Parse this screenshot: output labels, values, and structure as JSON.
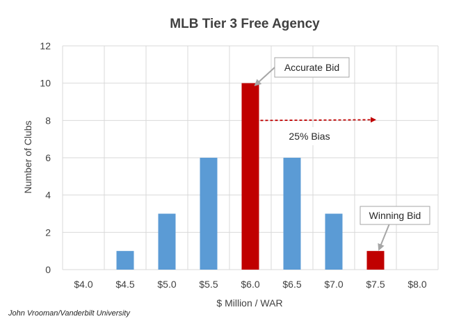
{
  "chart_data": {
    "type": "bar",
    "title": "MLB Tier 3 Free Agency",
    "xlabel": "$ Million / WAR",
    "ylabel": "Number of Clubs",
    "categories": [
      "$4.0",
      "$4.5",
      "$5.0",
      "$5.5",
      "$6.0",
      "$6.5",
      "$7.0",
      "$7.5",
      "$8.0"
    ],
    "values": [
      0,
      1,
      3,
      6,
      10,
      6,
      3,
      1,
      0
    ],
    "highlight_categories": [
      "$6.0",
      "$7.5"
    ],
    "ylim": [
      0,
      12
    ],
    "yticks": [
      0,
      2,
      4,
      6,
      8,
      10,
      12
    ],
    "grid": true,
    "colors": {
      "base": "#5b9bd5",
      "highlight": "#c00000",
      "grid": "#d9d9d9",
      "arrow": "#c00000",
      "callout_line": "#a6a6a6"
    },
    "annotations": {
      "accurate_bid": {
        "text": "Accurate Bid",
        "points_to": "$6.0"
      },
      "winning_bid": {
        "text": "Winning Bid",
        "points_to": "$7.5"
      },
      "bias": {
        "text": "25% Bias",
        "from_category": "$6.0",
        "to_value": 7.5,
        "at_y": 8
      }
    }
  },
  "credit": "John Vrooman/Vanderbilt University"
}
